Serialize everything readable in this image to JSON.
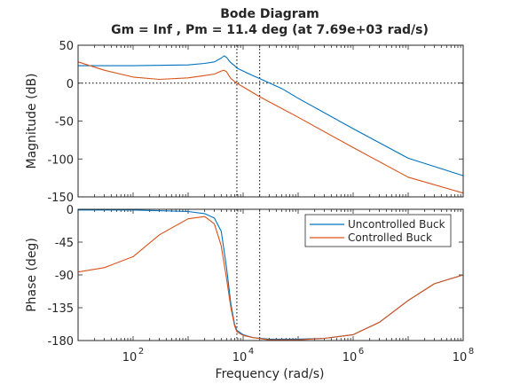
{
  "chart_data": {
    "type": "line",
    "title": "Bode Diagram",
    "subtitle": "Gm = Inf ,  Pm = 11.4 deg (at 7.69e+03 rad/s)",
    "xlabel": "Frequency  (rad/s)",
    "x_scale": "log",
    "xlim": [
      10,
      100000000
    ],
    "x_ticks": [
      100,
      10000,
      1000000,
      100000000
    ],
    "x_tick_labels": [
      {
        "base": "10",
        "exp": "2"
      },
      {
        "base": "10",
        "exp": "4"
      },
      {
        "base": "10",
        "exp": "6"
      },
      {
        "base": "10",
        "exp": "8"
      }
    ],
    "legend": {
      "position": "top-right",
      "entries": [
        "Uncontrolled Buck",
        "Controlled Buck"
      ]
    },
    "colors": {
      "uncontrolled": "#0072BD",
      "controlled": "#D95319"
    },
    "markers": {
      "gain_crossover_uncontrolled": 7690,
      "gain_crossover_controlled": 20000
    },
    "panels": [
      {
        "ylabel": "Magnitude (dB)",
        "ylim": [
          -150,
          50
        ],
        "y_ticks": [
          50,
          0,
          -50,
          -100,
          -150
        ],
        "reference_line": 0,
        "series": [
          {
            "name": "Uncontrolled Buck",
            "x": [
              10,
              100,
              1000,
              2000,
              3000,
              4000,
              4500,
              5000,
              5500,
              6000,
              7000,
              7690,
              10000,
              15000,
              20000,
              50000,
              100000,
              1000000,
              10000000,
              100000000
            ],
            "y": [
              23,
              23,
              24,
              26,
              28,
              33,
              36,
              34,
              30,
              27,
              23,
              20,
              16,
              10,
              6,
              -7,
              -20,
              -60,
              -99,
              -122
            ]
          },
          {
            "name": "Controlled Buck",
            "x": [
              10,
              30,
              100,
              300,
              1000,
              2000,
              3000,
              4000,
              4500,
              5000,
              5500,
              6000,
              7000,
              7690,
              10000,
              20000,
              100000,
              1000000,
              10000000,
              100000000
            ],
            "y": [
              28,
              17,
              8,
              5,
              7,
              10,
              12,
              16,
              17,
              15,
              10,
              6,
              2,
              0,
              -5,
              -18,
              -45,
              -85,
              -124,
              -145
            ]
          }
        ]
      },
      {
        "ylabel": "Phase (deg)",
        "ylim": [
          -180,
          0
        ],
        "y_ticks": [
          0,
          -45,
          -90,
          -135,
          -180
        ],
        "reference_line": -180,
        "series": [
          {
            "name": "Uncontrolled Buck",
            "x": [
              10,
              100,
              1000,
              2000,
              3000,
              4000,
              5000,
              6000,
              7000,
              7690,
              10000,
              15000,
              30000,
              100000,
              300000,
              1000000,
              3000000,
              10000000,
              30000000,
              100000000
            ],
            "y": [
              -1,
              -1,
              -3,
              -6,
              -12,
              -30,
              -80,
              -130,
              -158,
              -166,
              -172,
              -176,
              -178,
              -178,
              -177,
              -172,
              -155,
              -125,
              -102,
              -90
            ]
          },
          {
            "name": "Controlled Buck",
            "x": [
              10,
              30,
              100,
              300,
              1000,
              2000,
              3000,
              4000,
              5000,
              6000,
              7000,
              7690,
              10000,
              15000,
              30000,
              100000,
              300000,
              1000000,
              3000000,
              10000000,
              30000000,
              100000000
            ],
            "y": [
              -86,
              -80,
              -65,
              -35,
              -13,
              -10,
              -20,
              -50,
              -95,
              -135,
              -160,
              -168,
              -173,
              -176,
              -179,
              -179,
              -177,
              -172,
              -155,
              -125,
              -102,
              -90
            ]
          }
        ]
      }
    ]
  }
}
